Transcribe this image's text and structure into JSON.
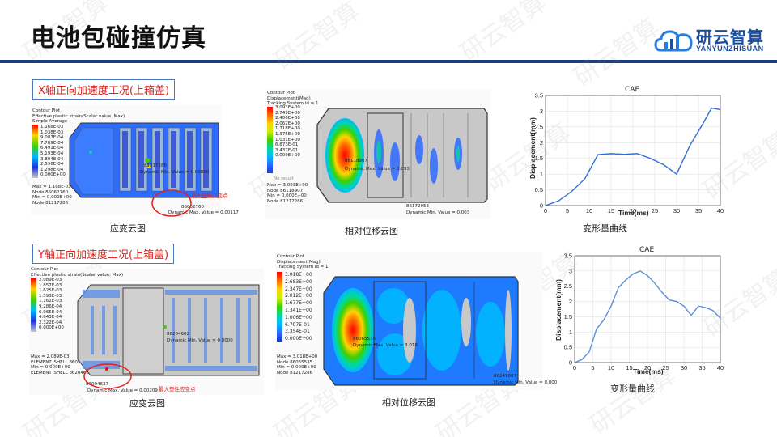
{
  "title": "电池包碰撞仿真",
  "logo": {
    "cn": "研云智算",
    "en": "YANYUNZHISUAN"
  },
  "watermark": "研云智算",
  "sections": {
    "x": {
      "label": "X轴正向加速度工况(上箱盖)"
    },
    "y": {
      "label": "Y轴正向加速度工况(上箱盖)"
    }
  },
  "x_strain": {
    "header": [
      "Contour Plot",
      "Effective plastic strain(Scalar value, Max)",
      "Simple Average"
    ],
    "legend": [
      "1.168E-03",
      "1.038E-03",
      "9.087E-04",
      "7.789E-04",
      "6.491E-04",
      "5.193E-04",
      "3.894E-04",
      "2.596E-04",
      "1.298E-04",
      "0.000E+00"
    ],
    "footer": [
      "Max = 1.168E-03",
      "Node 86062760",
      "Min = 0.000E+00",
      "Node 81217286"
    ],
    "min_label": "Dynamic Min. Value = 0.00000",
    "node_label": "81217286",
    "node_label2": "86062760",
    "bottom_label": "Dynamic Max. Value = 0.00117",
    "note": "最大塑性应变点",
    "caption": "应变云图"
  },
  "x_disp": {
    "header": [
      "Contour Plot",
      "Displacement(Mag)",
      "Tracking System id = 1"
    ],
    "legend": [
      "3.093E+00",
      "2.749E+00",
      "2.406E+00",
      "2.062E+00",
      "1.718E+00",
      "1.375E+00",
      "1.031E+00",
      "6.873E-01",
      "3.437E-01",
      "0.000E+00"
    ],
    "no_result": "No result",
    "footer": [
      "Max = 3.093E+00",
      "Node 86118907",
      "Min = 0.000E+00",
      "Node 81217286"
    ],
    "max_label": "86118907",
    "max_value": "Dynamic Max. Value = 3.093",
    "min_node": "86172053",
    "min_value": "Dynamic Min. Value = 0.003",
    "caption": "相对位移云图"
  },
  "x_curve": {
    "caption": "变形量曲线",
    "chart_data": {
      "type": "line",
      "title": "CAE",
      "xlabel": "Time(ms)",
      "ylabel": "Displacement(mm)",
      "xlim": [
        0,
        40
      ],
      "ylim": [
        0,
        3.5
      ],
      "xticks": [
        "0",
        "5",
        "10",
        "15",
        "20",
        "25",
        "30",
        "35",
        "40"
      ],
      "yticks": [
        "0",
        "0.5",
        "1",
        "1.5",
        "2",
        "2.5",
        "3",
        "3.5"
      ],
      "grid": true,
      "series": [
        {
          "color": "#2e6fd4",
          "x": [
            0,
            3,
            6,
            9,
            12,
            15,
            18,
            21,
            24,
            27,
            30,
            33,
            36,
            38,
            40
          ],
          "y": [
            0.0,
            0.15,
            0.45,
            0.85,
            1.62,
            1.65,
            1.63,
            1.65,
            1.5,
            1.3,
            1.0,
            1.9,
            2.6,
            3.1,
            3.05
          ]
        }
      ]
    }
  },
  "y_strain": {
    "header": [
      "Contour Plot",
      "Effective plastic strain(Scalar value, Max)"
    ],
    "legend": [
      "2.089E-03",
      "1.857E-03",
      "1.625E-03",
      "1.393E-03",
      "1.161E-03",
      "9.286E-04",
      "6.965E-04",
      "4.643E-04",
      "2.322E-04",
      "0.000E+00"
    ],
    "footer": [
      "Max = 2.089E-03",
      "ELEMENT_SHELL 86094637",
      "Min = 0.000E+00",
      "ELEMENT_SHELL 86204682"
    ],
    "min_label": "Dynamic Min. Value = 0.0000",
    "node_label": "86204682",
    "node_label2": "86094637",
    "bottom_label": "Dynamic Max. Value = 0.00209",
    "note": "最大塑性应变点",
    "caption": "应变云图"
  },
  "y_disp": {
    "header": [
      "Contour Plot",
      "Displacement(Mag)",
      "Tracking System id = 1"
    ],
    "legend": [
      "3.018E+00",
      "2.683E+00",
      "2.347E+00",
      "2.012E+00",
      "1.677E+00",
      "1.341E+00",
      "1.006E+00",
      "6.707E-01",
      "3.354E-01",
      "0.000E+00"
    ],
    "footer": [
      "Max = 3.018E+00",
      "Node 86065535",
      "Min = 0.000E+00",
      "Node 81217286"
    ],
    "max_label": "86065535",
    "max_value": "Dynamic Max. Value = 3.018",
    "min_node": "86147807",
    "min_value": "Dynamic Min. Value = 0.000",
    "caption": "相对位移云图"
  },
  "y_curve": {
    "caption": "变形量曲线",
    "chart_data": {
      "type": "line",
      "title": "CAE",
      "xlabel": "Time(ms)",
      "ylabel": "Displacement(mm)",
      "xlim": [
        0,
        40
      ],
      "ylim": [
        0,
        3.5
      ],
      "xticks": [
        "0",
        "5",
        "10",
        "15",
        "20",
        "25",
        "30",
        "35",
        "40"
      ],
      "yticks": [
        "0",
        "0.5",
        "1",
        "1.5",
        "2",
        "2.5",
        "3",
        "3.5"
      ],
      "grid": true,
      "series": [
        {
          "color": "#5b8fd8",
          "x": [
            0,
            2,
            4,
            6,
            8,
            10,
            12,
            14,
            16,
            18,
            20,
            22,
            24,
            26,
            28,
            30,
            32,
            34,
            36,
            38,
            40
          ],
          "y": [
            0.0,
            0.1,
            0.35,
            1.1,
            1.4,
            1.85,
            2.45,
            2.7,
            2.9,
            3.0,
            2.85,
            2.6,
            2.3,
            2.05,
            2.0,
            1.85,
            1.55,
            1.85,
            1.8,
            1.7,
            1.45
          ]
        }
      ]
    }
  },
  "colors": {
    "accent": "#1f3d7a",
    "red": "#e0211b",
    "legend": [
      "#ff0000",
      "#ff6a00",
      "#ffd400",
      "#c8f000",
      "#3fd000",
      "#00d8a0",
      "#00b8ff",
      "#2e6bff",
      "#1a32d8",
      "#c8c8c8"
    ]
  }
}
